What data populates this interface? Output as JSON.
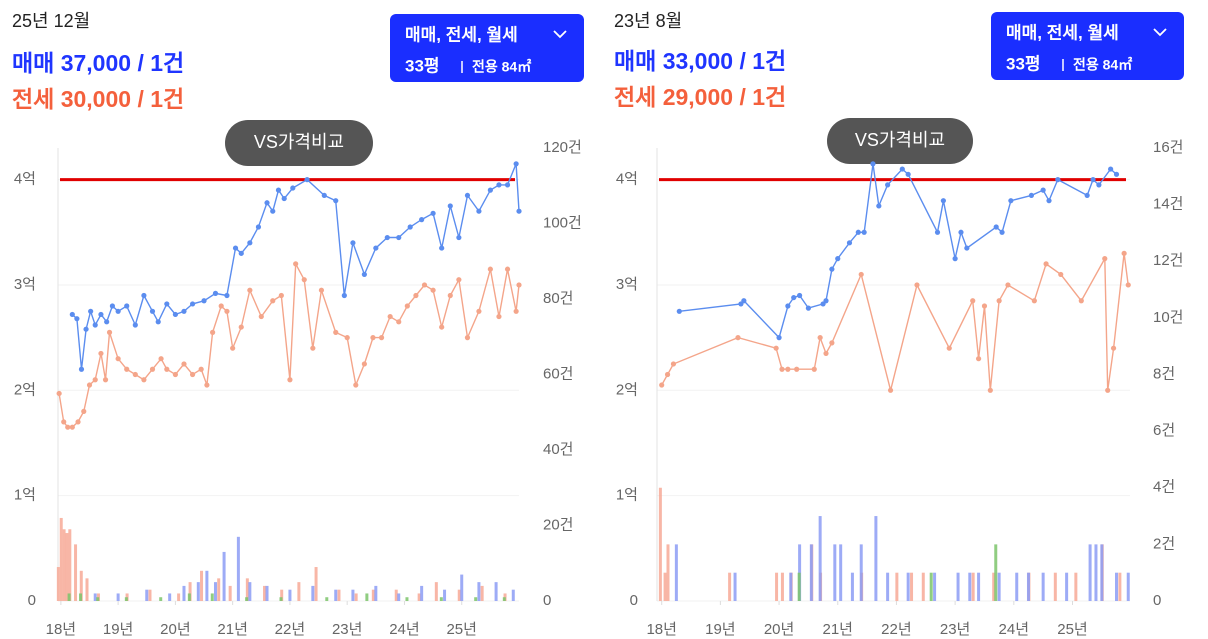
{
  "chart_data": [
    {
      "type": "line",
      "title": "25년 12월",
      "sale_summary": "매매 37,000 / 1건",
      "jeonse_summary": "전세 30,000 / 1건",
      "filter_button": "매매, 전세, 월세",
      "area_pyeong": "33평",
      "area_exclusive": "전용 84㎡",
      "compare_button": "VS가격비교",
      "xlim": [
        17.95,
        26.0
      ],
      "xticks": [
        {
          "value": 18,
          "label": "18년"
        },
        {
          "value": 19,
          "label": "19년"
        },
        {
          "value": 20,
          "label": "20년"
        },
        {
          "value": 21,
          "label": "21년"
        },
        {
          "value": 22,
          "label": "22년"
        },
        {
          "value": 23,
          "label": "23년"
        },
        {
          "value": 24,
          "label": "24년"
        },
        {
          "value": 25,
          "label": "25년"
        }
      ],
      "ylim": [
        0,
        4.3
      ],
      "yticks": [
        0,
        {
          "value": 1,
          "label": "1억"
        },
        {
          "value": 2,
          "label": "2억"
        },
        {
          "value": 3,
          "label": "3억"
        },
        {
          "value": 4,
          "label": "4억"
        }
      ],
      "y2lim": [
        0,
        120
      ],
      "y2ticks": [
        0,
        {
          "value": 20,
          "label": "20건"
        },
        {
          "value": 40,
          "label": "40건"
        },
        {
          "value": 60,
          "label": "60건"
        },
        {
          "value": 80,
          "label": "80건"
        },
        {
          "value": 100,
          "label": "100건"
        },
        {
          "value": 120,
          "label": "120건"
        }
      ],
      "grid": true,
      "reference_line": {
        "value": 4,
        "color": "#e00000"
      },
      "series": [
        {
          "color": "#5b8def",
          "x": [
            18.2,
            18.28,
            18.36,
            18.44,
            18.52,
            18.6,
            18.7,
            18.8,
            18.9,
            19.0,
            19.15,
            19.3,
            19.45,
            19.6,
            19.7,
            19.85,
            20.0,
            20.15,
            20.3,
            20.5,
            20.7,
            20.9,
            21.05,
            21.15,
            21.3,
            21.45,
            21.6,
            21.7,
            21.8,
            21.9,
            22.05,
            22.3,
            22.6,
            22.8,
            22.95,
            23.1,
            23.3,
            23.5,
            23.7,
            23.9,
            24.1,
            24.3,
            24.5,
            24.65,
            24.8,
            24.95,
            25.1,
            25.3,
            25.5,
            25.65,
            25.8,
            25.95,
            26.0
          ],
          "values": [
            2.72,
            2.68,
            2.2,
            2.58,
            2.75,
            2.62,
            2.72,
            2.65,
            2.8,
            2.75,
            2.8,
            2.62,
            2.9,
            2.75,
            2.65,
            2.82,
            2.72,
            2.75,
            2.82,
            2.85,
            2.92,
            2.9,
            3.35,
            3.3,
            3.4,
            3.55,
            3.78,
            3.7,
            3.9,
            3.82,
            3.92,
            4.0,
            3.85,
            3.8,
            2.9,
            3.4,
            3.1,
            3.35,
            3.45,
            3.45,
            3.55,
            3.62,
            3.68,
            3.35,
            3.75,
            3.45,
            3.85,
            3.7,
            3.9,
            3.95,
            3.95,
            4.15,
            3.7
          ]
        },
        {
          "color": "#f4a58a",
          "x": [
            17.97,
            18.05,
            18.12,
            18.2,
            18.3,
            18.4,
            18.5,
            18.6,
            18.7,
            18.78,
            18.85,
            19.0,
            19.15,
            19.3,
            19.45,
            19.6,
            19.75,
            19.85,
            20.0,
            20.15,
            20.3,
            20.45,
            20.55,
            20.65,
            20.8,
            20.9,
            21.0,
            21.15,
            21.3,
            21.5,
            21.7,
            21.85,
            22.0,
            22.1,
            22.25,
            22.4,
            22.55,
            22.8,
            23.0,
            23.15,
            23.3,
            23.45,
            23.6,
            23.75,
            23.9,
            24.05,
            24.2,
            24.35,
            24.5,
            24.65,
            24.8,
            24.95,
            25.1,
            25.3,
            25.5,
            25.65,
            25.8,
            25.95,
            26.0
          ],
          "values": [
            1.97,
            1.7,
            1.65,
            1.65,
            1.7,
            1.8,
            2.05,
            2.1,
            2.35,
            2.1,
            2.55,
            2.3,
            2.2,
            2.15,
            2.1,
            2.2,
            2.3,
            2.2,
            2.15,
            2.25,
            2.15,
            2.2,
            2.05,
            2.55,
            2.8,
            2.75,
            2.4,
            2.6,
            2.95,
            2.7,
            2.85,
            2.9,
            2.1,
            3.2,
            3.05,
            2.4,
            2.95,
            2.55,
            2.5,
            2.05,
            2.25,
            2.5,
            2.5,
            2.7,
            2.65,
            2.8,
            2.9,
            3.0,
            2.95,
            2.6,
            2.9,
            3.05,
            2.5,
            2.75,
            3.15,
            2.7,
            3.15,
            2.75,
            3.0
          ]
        }
      ],
      "bars": [
        {
          "color": "#f7a996",
          "axis": "y2",
          "x": [
            18.0,
            18.05,
            18.1,
            18.15,
            18.2,
            18.3,
            18.4,
            18.5,
            18.7,
            19.2,
            19.6,
            20.1,
            20.3,
            20.5,
            20.8,
            21.0,
            21.3,
            21.6,
            21.9,
            22.2,
            22.5,
            22.9,
            23.2,
            23.5,
            23.9,
            24.3,
            24.6,
            25.0,
            25.4,
            25.8
          ],
          "values": [
            9,
            22,
            19,
            18,
            19,
            15,
            8,
            6,
            2,
            2,
            3,
            2,
            5,
            8,
            6,
            4,
            6,
            4,
            3,
            5,
            9,
            3,
            2,
            3,
            3,
            2,
            5,
            3,
            4,
            2
          ]
        },
        {
          "color": "#8c9cf5",
          "axis": "y2",
          "x": [
            18.6,
            19.0,
            19.5,
            19.9,
            20.15,
            20.4,
            20.55,
            20.7,
            20.85,
            21.1,
            21.3,
            21.6,
            22.0,
            22.4,
            22.8,
            23.1,
            23.5,
            23.9,
            24.3,
            24.7,
            25.0,
            25.3,
            25.6,
            25.9
          ],
          "values": [
            2,
            2,
            3,
            2,
            4,
            5,
            8,
            5,
            13,
            17,
            5,
            4,
            3,
            4,
            3,
            3,
            4,
            2,
            4,
            3,
            7,
            5,
            5,
            3
          ]
        },
        {
          "color": "#7cc46b",
          "axis": "y2",
          "x": [
            18.1,
            18.3,
            18.6,
            19.1,
            19.7,
            20.2,
            20.6,
            21.2,
            21.8,
            22.6,
            23.3,
            24.0,
            24.6,
            25.2,
            25.7
          ],
          "values": [
            2,
            2,
            1,
            1,
            1,
            2,
            2,
            1,
            1,
            1,
            2,
            1,
            1,
            1,
            1
          ]
        }
      ]
    },
    {
      "type": "line",
      "title": "23년 8월",
      "sale_summary": "매매 33,000 / 1건",
      "jeonse_summary": "전세 29,000 / 1건",
      "filter_button": "매매, 전세, 월세",
      "area_pyeong": "33평",
      "area_exclusive": "전용 84㎡",
      "compare_button": "VS가격비교",
      "xlim": [
        17.92,
        25.98
      ],
      "xticks": [
        {
          "value": 18,
          "label": "18년"
        },
        {
          "value": 19,
          "label": "19년"
        },
        {
          "value": 20,
          "label": "20년"
        },
        {
          "value": 21,
          "label": "21년"
        },
        {
          "value": 22,
          "label": "22년"
        },
        {
          "value": 23,
          "label": "23년"
        },
        {
          "value": 24,
          "label": "24년"
        },
        {
          "value": 25,
          "label": "25년"
        }
      ],
      "ylim": [
        0,
        4.3
      ],
      "yticks": [
        0,
        {
          "value": 1,
          "label": "1억"
        },
        {
          "value": 2,
          "label": "2억"
        },
        {
          "value": 3,
          "label": "3억"
        },
        {
          "value": 4,
          "label": "4억"
        }
      ],
      "y2lim": [
        0,
        16
      ],
      "y2ticks": [
        0,
        {
          "value": 2,
          "label": "2건"
        },
        {
          "value": 4,
          "label": "4건"
        },
        {
          "value": 6,
          "label": "6건"
        },
        {
          "value": 8,
          "label": "8건"
        },
        {
          "value": 10,
          "label": "10건"
        },
        {
          "value": 12,
          "label": "12건"
        },
        {
          "value": 14,
          "label": "14건"
        },
        {
          "value": 16,
          "label": "16건"
        }
      ],
      "grid": true,
      "reference_line": {
        "value": 4,
        "color": "#e00000"
      },
      "series": [
        {
          "color": "#5b8def",
          "x": [
            18.3,
            19.35,
            19.4,
            20.0,
            20.15,
            20.25,
            20.35,
            20.5,
            20.75,
            20.8,
            20.9,
            21.0,
            21.2,
            21.35,
            21.45,
            21.6,
            21.7,
            21.85,
            22.1,
            22.2,
            22.7,
            22.8,
            23.0,
            23.1,
            23.2,
            23.7,
            23.8,
            23.95,
            24.3,
            24.5,
            24.6,
            24.75,
            25.25,
            25.35,
            25.45,
            25.65,
            25.75
          ],
          "values": [
            2.75,
            2.82,
            2.85,
            2.5,
            2.8,
            2.88,
            2.9,
            2.78,
            2.82,
            2.85,
            3.15,
            3.25,
            3.4,
            3.5,
            3.5,
            4.15,
            3.75,
            3.95,
            4.1,
            4.05,
            3.5,
            3.8,
            3.25,
            3.5,
            3.35,
            3.55,
            3.5,
            3.8,
            3.85,
            3.9,
            3.8,
            4.0,
            3.85,
            4.0,
            3.95,
            4.1,
            4.05
          ]
        },
        {
          "color": "#f4a58a",
          "x": [
            18.0,
            18.1,
            18.2,
            19.3,
            19.95,
            20.05,
            20.15,
            20.3,
            20.6,
            20.7,
            20.8,
            20.9,
            21.4,
            21.9,
            22.35,
            22.9,
            23.3,
            23.4,
            23.5,
            23.6,
            23.75,
            23.9,
            24.35,
            24.55,
            24.8,
            25.15,
            25.55,
            25.6,
            25.7,
            25.88,
            25.95
          ],
          "values": [
            2.05,
            2.15,
            2.25,
            2.5,
            2.4,
            2.2,
            2.2,
            2.2,
            2.2,
            2.5,
            2.35,
            2.45,
            3.1,
            2.0,
            3.0,
            2.4,
            2.85,
            2.3,
            2.8,
            2.0,
            2.85,
            3.0,
            2.85,
            3.2,
            3.1,
            2.85,
            3.25,
            2.0,
            2.4,
            3.3,
            3.0
          ]
        }
      ],
      "bars": [
        {
          "color": "#f7a996",
          "axis": "y2",
          "x": [
            18.02,
            18.1,
            18.15,
            19.2,
            20.0,
            20.1,
            20.25,
            20.6,
            20.75,
            21.45,
            22.05,
            22.3,
            22.5,
            23.35,
            23.7,
            24.3,
            24.75,
            25.1,
            25.55,
            25.85
          ],
          "values": [
            4,
            1,
            2,
            1,
            1,
            1,
            1,
            2,
            1,
            1,
            1,
            1,
            1,
            1,
            1,
            1,
            1,
            1,
            2,
            1
          ]
        },
        {
          "color": "#8c9cf5",
          "axis": "y2",
          "x": [
            18.25,
            19.25,
            20.2,
            20.35,
            20.55,
            20.7,
            20.95,
            21.05,
            21.25,
            21.4,
            21.65,
            21.85,
            22.2,
            22.65,
            23.05,
            23.25,
            23.4,
            23.75,
            24.05,
            24.25,
            24.5,
            24.9,
            25.3,
            25.4,
            25.5,
            25.75,
            25.95
          ],
          "values": [
            2,
            1,
            1,
            2,
            2,
            3,
            2,
            2,
            1,
            2,
            3,
            1,
            1,
            1,
            1,
            1,
            1,
            1,
            1,
            1,
            1,
            1,
            2,
            2,
            2,
            1,
            1
          ]
        },
        {
          "color": "#7cc46b",
          "axis": "y2",
          "x": [
            20.3,
            22.55,
            23.65
          ],
          "values": [
            1,
            1,
            2
          ]
        }
      ]
    }
  ]
}
